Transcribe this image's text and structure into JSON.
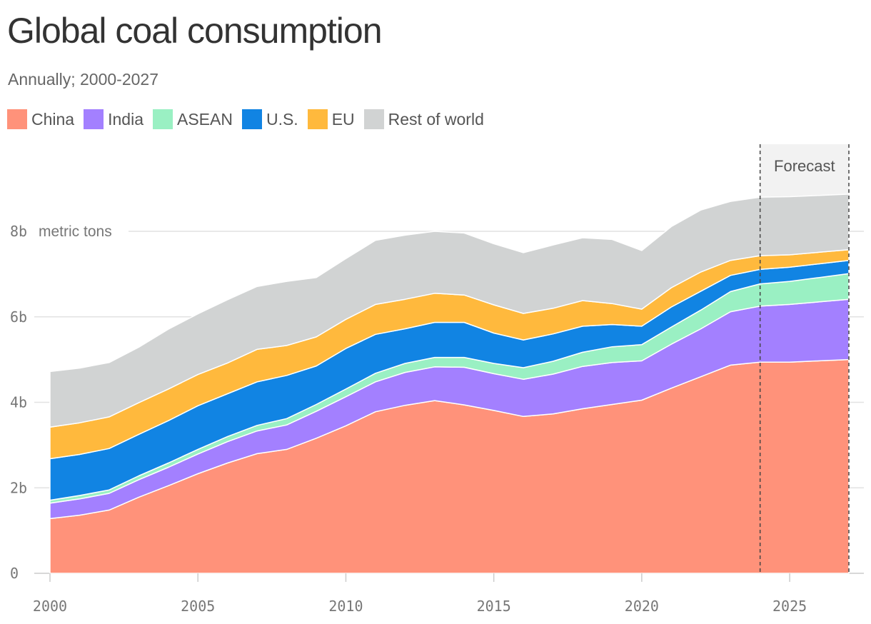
{
  "title": "Global coal consumption",
  "subtitle": "Annually; 2000-2027",
  "forecast_label": "Forecast",
  "unit_label": "metric tons",
  "chart_data": {
    "type": "area",
    "stacked": true,
    "title": "Global coal consumption",
    "subtitle": "Annually; 2000-2027",
    "xlabel": "",
    "ylabel": "metric tons",
    "xlim": [
      2000,
      2027
    ],
    "ylim": [
      0,
      9
    ],
    "x_ticks": [
      2000,
      2005,
      2010,
      2015,
      2020,
      2025
    ],
    "x_tick_labels": [
      "2000",
      "2005",
      "2010",
      "2015",
      "2020",
      "2025"
    ],
    "y_ticks": [
      0,
      2,
      4,
      6,
      8
    ],
    "y_tick_labels": [
      "0",
      "2b",
      "4b",
      "6b",
      "8b"
    ],
    "grid": "horizontal",
    "legend_position": "top",
    "forecast_range": [
      2024,
      2027
    ],
    "x": [
      2000,
      2001,
      2002,
      2003,
      2004,
      2005,
      2006,
      2007,
      2008,
      2009,
      2010,
      2011,
      2012,
      2013,
      2014,
      2015,
      2016,
      2017,
      2018,
      2019,
      2020,
      2021,
      2022,
      2023,
      2024,
      2025,
      2026,
      2027
    ],
    "series": [
      {
        "name": "China",
        "color": "#FF927A",
        "values": [
          1.28,
          1.36,
          1.48,
          1.78,
          2.05,
          2.33,
          2.58,
          2.8,
          2.9,
          3.16,
          3.45,
          3.78,
          3.93,
          4.04,
          3.94,
          3.81,
          3.67,
          3.73,
          3.85,
          3.95,
          4.05,
          4.33,
          4.6,
          4.87,
          4.94,
          4.94,
          4.97,
          5.0
        ]
      },
      {
        "name": "India",
        "color": "#A380FF",
        "values": [
          0.36,
          0.38,
          0.39,
          0.41,
          0.43,
          0.46,
          0.5,
          0.53,
          0.57,
          0.63,
          0.68,
          0.7,
          0.77,
          0.79,
          0.88,
          0.86,
          0.87,
          0.93,
          0.99,
          0.98,
          0.92,
          1.03,
          1.12,
          1.25,
          1.31,
          1.35,
          1.38,
          1.41
        ]
      },
      {
        "name": "ASEAN",
        "color": "#9AF0C3",
        "values": [
          0.07,
          0.08,
          0.08,
          0.09,
          0.1,
          0.11,
          0.12,
          0.13,
          0.15,
          0.16,
          0.18,
          0.2,
          0.21,
          0.22,
          0.23,
          0.24,
          0.27,
          0.3,
          0.33,
          0.37,
          0.38,
          0.4,
          0.44,
          0.47,
          0.52,
          0.54,
          0.57,
          0.6
        ]
      },
      {
        "name": "U.S.",
        "color": "#1184E3",
        "values": [
          0.97,
          0.96,
          0.97,
          0.97,
          0.99,
          1.02,
          1.0,
          1.02,
          1.01,
          0.9,
          0.95,
          0.91,
          0.81,
          0.82,
          0.82,
          0.71,
          0.65,
          0.64,
          0.61,
          0.52,
          0.43,
          0.47,
          0.44,
          0.38,
          0.34,
          0.33,
          0.32,
          0.31
        ]
      },
      {
        "name": "EU",
        "color": "#FFB93D",
        "values": [
          0.74,
          0.74,
          0.74,
          0.74,
          0.74,
          0.73,
          0.72,
          0.76,
          0.7,
          0.68,
          0.68,
          0.7,
          0.69,
          0.68,
          0.64,
          0.66,
          0.62,
          0.6,
          0.6,
          0.49,
          0.4,
          0.45,
          0.45,
          0.35,
          0.32,
          0.29,
          0.27,
          0.25
        ]
      },
      {
        "name": "Rest of world",
        "color": "#D1D3D3",
        "values": [
          1.3,
          1.28,
          1.27,
          1.3,
          1.4,
          1.42,
          1.48,
          1.47,
          1.5,
          1.39,
          1.42,
          1.5,
          1.5,
          1.45,
          1.45,
          1.43,
          1.42,
          1.48,
          1.47,
          1.5,
          1.37,
          1.43,
          1.45,
          1.38,
          1.37,
          1.36,
          1.33,
          1.3
        ]
      }
    ]
  }
}
